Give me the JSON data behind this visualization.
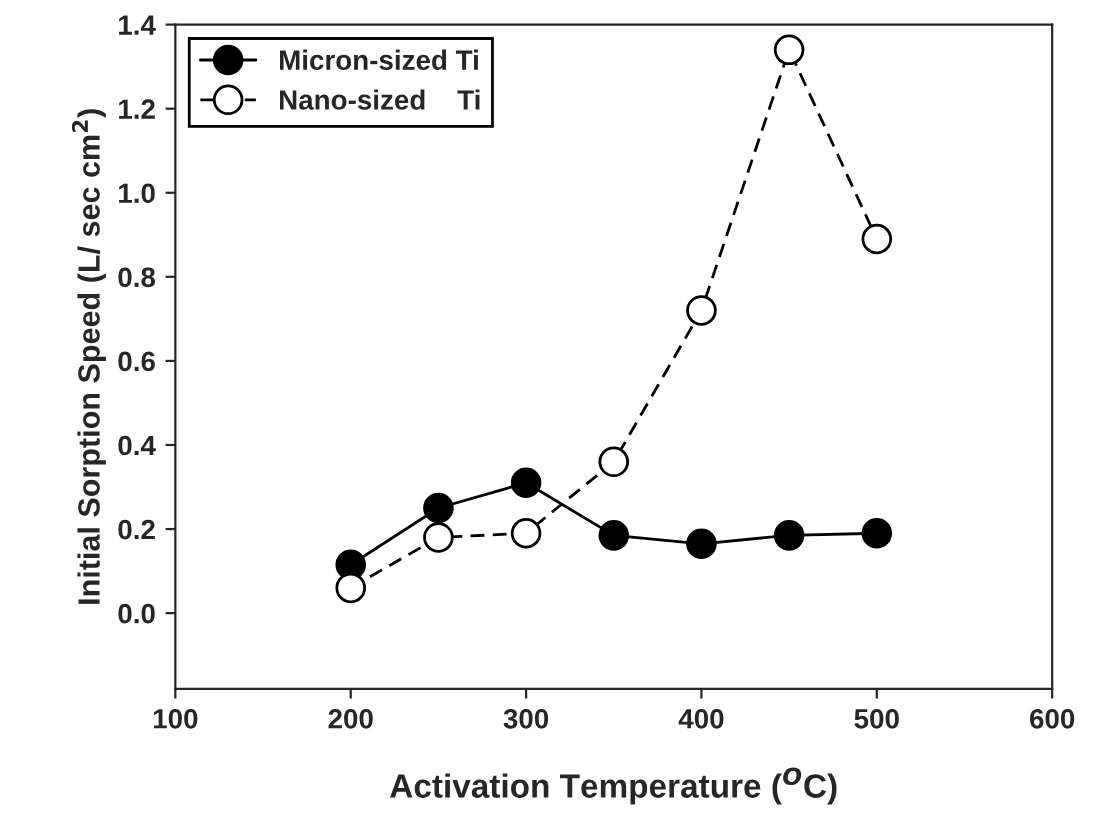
{
  "chart_data": {
    "type": "line",
    "xlabel": "Activation Temperature ($^{O}$C)",
    "ylabel": "Initial Sorption Speed (L/ sec cm$^{2}$)",
    "x": [
      200,
      250,
      300,
      350,
      400,
      450,
      500
    ],
    "series": [
      {
        "name": "Micron-sized Ti",
        "color": "#000000",
        "values": [
          0.115,
          0.25,
          0.31,
          0.185,
          0.165,
          0.185,
          0.19
        ],
        "marker": "circle",
        "line_style": "solid"
      },
      {
        "name": "Nano-sized    Ti",
        "color": "#000000",
        "values": [
          0.06,
          0.18,
          0.19,
          0.36,
          0.72,
          1.34,
          0.89
        ],
        "marker": "circle",
        "line_style": "dashed"
      }
    ],
    "xlim": [
      100,
      600
    ],
    "xticks": [
      100,
      200,
      300,
      400,
      500,
      600
    ],
    "ylim": [
      -0.18,
      1.4
    ],
    "yticks": [
      {
        "value": 0,
        "label": "0.0"
      },
      0.2,
      0.4,
      0.6,
      0.8,
      {
        "value": 1,
        "label": "1.0"
      },
      1.2,
      1.4
    ],
    "grid": false,
    "legend": "top left"
  }
}
